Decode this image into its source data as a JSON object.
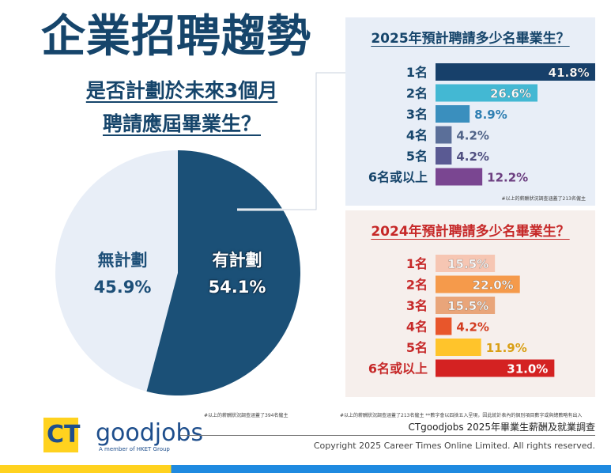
{
  "title": "企業招聘趨勢",
  "subtitle": [
    "是否計劃於未來3個月",
    "聘請應屆畢業生？"
  ],
  "chart_data": [
    {
      "type": "pie",
      "title": "是否計劃於未來3個月聘請應屆畢業生？",
      "labels": [
        "有計劃",
        "無計劃"
      ],
      "values": [
        54.1,
        45.9
      ],
      "value_labels": [
        "54.1%",
        "45.9%"
      ],
      "colors": [
        "#1b5077",
        "#e8eef7"
      ],
      "note": "#以上的薪酬狀況調查涵蓋了394名僱主"
    },
    {
      "type": "bar",
      "title": "2025年預計聘請多少名畢業生？",
      "categories": [
        "1名",
        "2名",
        "3名",
        "4名",
        "5名",
        "6名或以上"
      ],
      "values": [
        41.8,
        26.6,
        8.9,
        4.2,
        4.2,
        12.2
      ],
      "value_labels": [
        "41.8%",
        "26.6%",
        "8.9%",
        "4.2%",
        "4.2%",
        "12.2%"
      ],
      "colors": [
        "#17406a",
        "#43b8d3",
        "#3a8fbe",
        "#5b6f99",
        "#5a5a93",
        "#7a4691"
      ],
      "label_colors": [
        "#ffffff",
        "#ffffff",
        "#2f7fb2",
        "#4f6388",
        "#4f4f80",
        "#6c3f80"
      ],
      "note": "#以上的薪酬狀況調查涵蓋了213名僱主"
    },
    {
      "type": "bar",
      "title": "2024年預計聘請多少名畢業生？",
      "categories": [
        "1名",
        "2名",
        "3名",
        "4名",
        "5名",
        "6名或以上"
      ],
      "values": [
        15.5,
        22.0,
        15.5,
        4.2,
        11.9,
        31.0
      ],
      "value_labels": [
        "15.5%",
        "22.0%",
        "15.5%",
        "4.2%",
        "11.9%",
        "31.0%"
      ],
      "colors": [
        "#f6c6b3",
        "#f59a4b",
        "#e9a57a",
        "#e8562b",
        "#ffc42b",
        "#d42222"
      ],
      "label_colors": [
        "#ffffff",
        "#ffffff",
        "#ffffff",
        "#d23b1f",
        "#d9a017",
        "#ffffff"
      ],
      "note": "#以上的薪酬狀況調查涵蓋了213名僱主  **數字會以四捨五入呈現，因此統計表內的個別項目數字或與總數略有出入"
    }
  ],
  "footer": {
    "logo_ct": "CT",
    "logo_good": "goodjobs",
    "logo_member": "A member of HKET Group",
    "survey": "CTgoodjobs 2025年畢業生薪酬及就業調查",
    "copyright": "Copyright 2025 Career Times Online Limited. All rights reserved."
  }
}
